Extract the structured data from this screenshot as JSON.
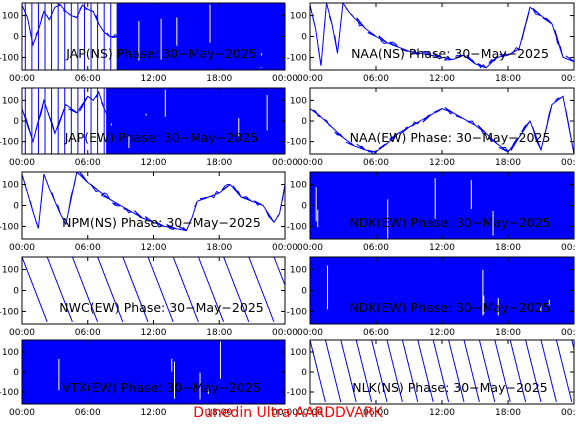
{
  "colors": {
    "trace": "#0000ff",
    "axes": "#000000",
    "background": "#ffffff",
    "footer": "#ff0000"
  },
  "footer": {
    "text": "Dunedin Ultra AARDDVARK"
  },
  "x_ticks": [
    "00:00",
    "06:00",
    "12:00",
    "18:00",
    "00:00"
  ],
  "y_ticks": [
    100,
    0,
    -100
  ],
  "chart_data": [
    {
      "type": "line",
      "title": "JAP(NS) Phase: 30−May−2025",
      "ylim": [
        -160,
        160
      ],
      "pattern": "dense",
      "fill_from": 0.36,
      "xlim_hours": [
        0,
        24
      ],
      "x": [
        0,
        0.5,
        1,
        1.5,
        2,
        2.5,
        3,
        3.5,
        4,
        4.5,
        5,
        5.5,
        6,
        6.5,
        7,
        7.5,
        8,
        9,
        10,
        12,
        15,
        18,
        21,
        24
      ],
      "y": [
        150,
        90,
        -40,
        30,
        120,
        80,
        140,
        150,
        120,
        100,
        90,
        150,
        130,
        120,
        60,
        20,
        0,
        0,
        0,
        0,
        0,
        0,
        0,
        0
      ]
    },
    {
      "type": "line",
      "title": "NAA(NS) Phase: 30−May−2025",
      "ylim": [
        -160,
        160
      ],
      "pattern": "trace",
      "xlim_hours": [
        0,
        24
      ],
      "x": [
        0,
        0.5,
        1,
        1.5,
        2,
        2.5,
        3,
        3.5,
        4,
        5,
        6,
        7,
        8,
        9,
        10,
        11,
        12,
        13,
        14,
        15,
        16,
        17,
        18,
        19,
        20,
        21,
        22,
        23,
        24
      ],
      "y": [
        150,
        40,
        -140,
        160,
        60,
        -80,
        160,
        120,
        90,
        40,
        0,
        -30,
        -50,
        -70,
        -80,
        -90,
        -100,
        -110,
        -90,
        -130,
        -150,
        -100,
        -90,
        -60,
        140,
        100,
        60,
        -100,
        -120
      ]
    },
    {
      "type": "line",
      "title": "JAP(EW) Phase: 30−May−2025",
      "ylim": [
        -160,
        160
      ],
      "pattern": "dense",
      "fill_from": 0.32,
      "xlim_hours": [
        0,
        24
      ],
      "x": [
        0,
        1,
        2,
        3,
        4,
        5,
        6,
        6.5,
        7,
        7.5,
        8,
        10,
        12,
        15,
        18,
        21,
        24
      ],
      "y": [
        60,
        -100,
        100,
        -60,
        80,
        40,
        120,
        100,
        140,
        60,
        0,
        0,
        0,
        0,
        0,
        0,
        0
      ]
    },
    {
      "type": "line",
      "title": "NAA(EW) Phase: 30−May−2025",
      "ylim": [
        -160,
        160
      ],
      "pattern": "trace",
      "xlim_hours": [
        0,
        24
      ],
      "x": [
        0,
        1,
        2,
        3,
        4,
        5,
        6,
        7,
        8,
        9,
        10,
        11,
        12,
        13,
        14,
        15,
        16,
        17,
        18,
        19,
        20,
        21,
        22,
        23,
        24
      ],
      "y": [
        60,
        20,
        -30,
        -80,
        -120,
        -140,
        -150,
        -110,
        -60,
        -30,
        0,
        30,
        60,
        40,
        10,
        -20,
        -60,
        -110,
        -150,
        -80,
        0,
        -140,
        80,
        120,
        -160
      ]
    },
    {
      "type": "line",
      "title": "NPM(NS) Phase: 30−May−2025",
      "ylim": [
        -160,
        160
      ],
      "pattern": "trace",
      "xlim_hours": [
        0,
        24
      ],
      "x": [
        0,
        0.5,
        1,
        1.5,
        2,
        2.5,
        3,
        3.5,
        4,
        5,
        6,
        7,
        8,
        9,
        10,
        11,
        12,
        13,
        14,
        15,
        15.5,
        16,
        17,
        18,
        19,
        20,
        21,
        22,
        23,
        23.5,
        24
      ],
      "y": [
        150,
        60,
        -30,
        -110,
        150,
        80,
        20,
        -40,
        -90,
        160,
        110,
        70,
        30,
        0,
        -30,
        -60,
        -80,
        -100,
        -110,
        -120,
        -60,
        20,
        40,
        60,
        100,
        40,
        20,
        0,
        -80,
        -40,
        100
      ]
    },
    {
      "type": "line",
      "title": "NDK(EW) Phase: 30−May−2025",
      "ylim": [
        -160,
        160
      ],
      "pattern": "dense",
      "fill_from": 0.0,
      "xlim_hours": [
        0,
        24
      ],
      "x": [
        0,
        3,
        6,
        9,
        12,
        15,
        18,
        21,
        24
      ],
      "y": [
        0,
        0,
        0,
        0,
        0,
        0,
        0,
        0,
        0
      ]
    },
    {
      "type": "line",
      "title": "NWC(EW) Phase: 30−May−2025",
      "ylim": [
        -160,
        160
      ],
      "pattern": "sawtooth",
      "period_hours": 2.3,
      "xlim_hours": [
        0,
        24
      ],
      "x": [
        0,
        24
      ],
      "y": [
        160,
        -150
      ]
    },
    {
      "type": "line",
      "title": "NDK(EW) Phase: 30−May−2025",
      "ylim": [
        -160,
        160
      ],
      "pattern": "dense",
      "fill_from": 0.0,
      "xlim_hours": [
        0,
        24
      ],
      "x": [
        0,
        3,
        6,
        9,
        12,
        15,
        18,
        21,
        24
      ],
      "y": [
        0,
        0,
        0,
        0,
        0,
        0,
        0,
        0,
        0
      ]
    },
    {
      "type": "line",
      "title": "VTX(EW) Phase: 30−May−2025",
      "ylim": [
        -160,
        160
      ],
      "pattern": "dense",
      "fill_from": 0.0,
      "xlim_hours": [
        0,
        24
      ],
      "x": [
        0,
        3,
        6,
        9,
        12,
        15,
        18,
        21,
        24
      ],
      "y": [
        0,
        0,
        0,
        0,
        0,
        0,
        0,
        0,
        0
      ]
    },
    {
      "type": "line",
      "title": "NLK(NS) Phase: 30−May−2025",
      "ylim": [
        -160,
        160
      ],
      "pattern": "sawtooth",
      "period_hours": 1.4,
      "xlim_hours": [
        0,
        24
      ],
      "x": [
        0,
        24
      ],
      "y": [
        160,
        -150
      ]
    }
  ]
}
